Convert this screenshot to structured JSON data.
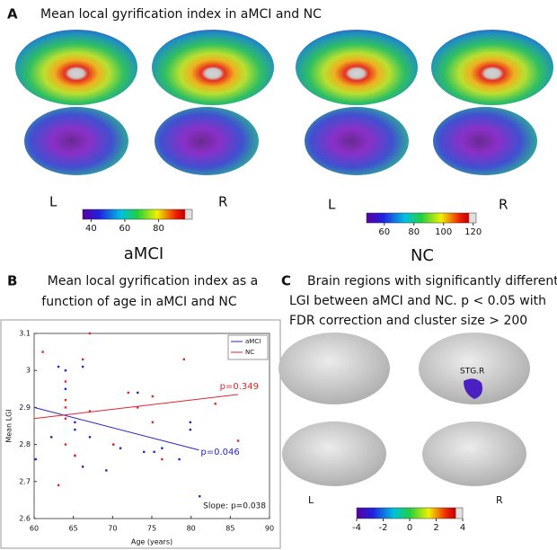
{
  "panel_a": {
    "label": "A",
    "title": "Mean local gyrification index in aMCI and NC",
    "side_labels": [
      "L",
      "R",
      "L",
      "R"
    ],
    "colorbars": [
      {
        "name": "aMCI",
        "lim": [
          35,
          100
        ],
        "ticks": [
          40,
          60,
          80
        ]
      },
      {
        "name": "NC",
        "lim": [
          48,
          122
        ],
        "ticks": [
          60,
          80,
          100,
          120
        ]
      }
    ]
  },
  "panel_b": {
    "label": "B",
    "title_lines": [
      "Mean local gyrification index as a",
      "function of age in aMCI and NC"
    ]
  },
  "chart_data": {
    "type": "scatter",
    "x_label": "Age (years)",
    "y_label": "Mean LGI",
    "xlim": [
      60,
      90
    ],
    "xticks": [
      60,
      65,
      70,
      75,
      80,
      85,
      90
    ],
    "ylim": [
      2.6,
      3.1
    ],
    "yticks": [
      2.6,
      2.7,
      2.8,
      2.9,
      3,
      3.1
    ],
    "legend": "top-right",
    "slope_label": "Slope: p=0.038",
    "series": [
      {
        "name": "aMCI",
        "color": "#2727c8",
        "p_label": "p=0.046",
        "x": [
          60.2,
          62.2,
          63.1,
          64.0,
          64.0,
          65.2,
          65.2,
          66.2,
          66.2,
          67.1,
          69.2,
          71.0,
          73.2,
          74.0,
          75.3,
          76.3,
          78.5,
          79.9,
          79.9,
          81.1
        ],
        "values": [
          2.76,
          2.82,
          3.01,
          3.0,
          2.95,
          2.86,
          2.84,
          3.01,
          2.74,
          2.82,
          2.73,
          2.79,
          2.94,
          2.78,
          2.78,
          2.79,
          2.76,
          2.86,
          2.84,
          2.66
        ],
        "trend": {
          "x": [
            60,
            81
          ],
          "values": [
            2.9,
            2.785
          ]
        }
      },
      {
        "name": "NC",
        "color": "#e0262b",
        "p_label": "p=0.349",
        "x": [
          61.1,
          63.1,
          64.0,
          64.0,
          64.0,
          64.0,
          64.0,
          65.2,
          65.2,
          66.2,
          67.1,
          67.1,
          70.1,
          70.1,
          72.0,
          73.2,
          75.1,
          75.1,
          76.3,
          79.1,
          83.1,
          86.0
        ],
        "values": [
          3.05,
          2.69,
          2.87,
          2.9,
          2.92,
          2.97,
          2.8,
          2.77,
          2.77,
          3.03,
          3.1,
          2.89,
          2.8,
          2.8,
          2.94,
          2.9,
          2.93,
          2.86,
          2.76,
          3.03,
          2.91,
          2.81
        ],
        "trend": {
          "x": [
            60,
            86
          ],
          "values": [
            2.87,
            2.935
          ]
        }
      }
    ]
  },
  "panel_c": {
    "label": "C",
    "title_lines": [
      "Brain regions with significantly different",
      "LGI between aMCI and NC. p < 0.05 with",
      "FDR correction and cluster size > 200"
    ],
    "region_label": "STG.R",
    "side_labels": [
      "L",
      "R"
    ],
    "colorbar": {
      "lim": [
        -4,
        4
      ],
      "ticks": [
        -4,
        -2,
        0,
        2,
        4
      ]
    }
  }
}
